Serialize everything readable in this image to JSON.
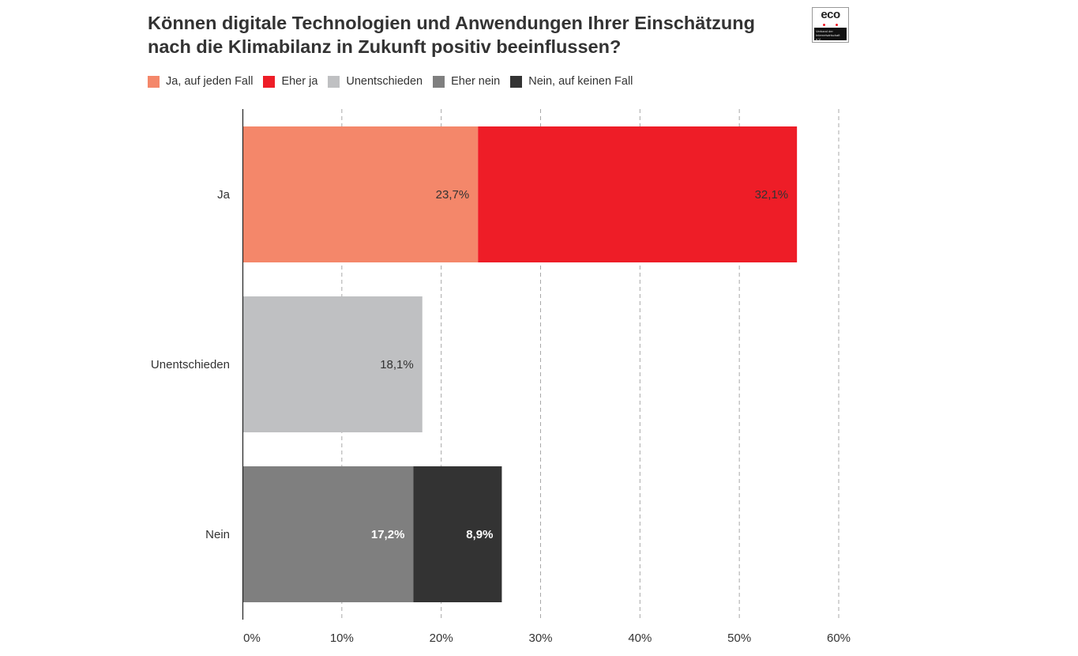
{
  "chart_data": {
    "type": "bar",
    "orientation": "horizontal",
    "stacked": true,
    "title": "Können digitale Technologien und Anwendungen Ihrer Einschätzung nach die Klimabilanz in Zukunft positiv beeinflussen?",
    "categories": [
      "Ja",
      "Unentschieden",
      "Nein"
    ],
    "series": [
      {
        "name": "Ja, auf jeden Fall",
        "color": "#f4876a",
        "label_color": "#333333",
        "label_bold": false,
        "values": [
          23.7,
          0,
          0
        ],
        "labels": [
          "23,7%",
          "",
          ""
        ]
      },
      {
        "name": "Eher ja",
        "color": "#ee1d27",
        "label_color": "#333333",
        "label_bold": false,
        "values": [
          32.1,
          0,
          0
        ],
        "labels": [
          "32,1%",
          "",
          ""
        ]
      },
      {
        "name": "Unentschieden",
        "color": "#bfc0c2",
        "label_color": "#333333",
        "label_bold": false,
        "values": [
          0,
          18.1,
          0
        ],
        "labels": [
          "",
          "18,1%",
          ""
        ]
      },
      {
        "name": "Eher nein",
        "color": "#7f7f7f",
        "label_color": "#ffffff",
        "label_bold": true,
        "values": [
          0,
          0,
          17.2
        ],
        "labels": [
          "",
          "",
          "17,2%"
        ]
      },
      {
        "name": "Nein, auf keinen Fall",
        "color": "#333333",
        "label_color": "#ffffff",
        "label_bold": true,
        "values": [
          0,
          0,
          8.9
        ],
        "labels": [
          "",
          "",
          "8,9%"
        ]
      }
    ],
    "xlim": [
      0,
      60
    ],
    "xticks": [
      0,
      10,
      20,
      30,
      40,
      50,
      60
    ],
    "xtick_labels": [
      "0%",
      "10%",
      "20%",
      "30%",
      "40%",
      "50%",
      "60%"
    ],
    "grid": "vertical-dashed",
    "legend_position": "top-left"
  },
  "logo": {
    "word": "eco",
    "tagline": "Verband der Internetwirtschaft e.V.",
    "dot_colors": [
      "#ee1d27",
      "#ffffff",
      "#ee1d27"
    ]
  }
}
